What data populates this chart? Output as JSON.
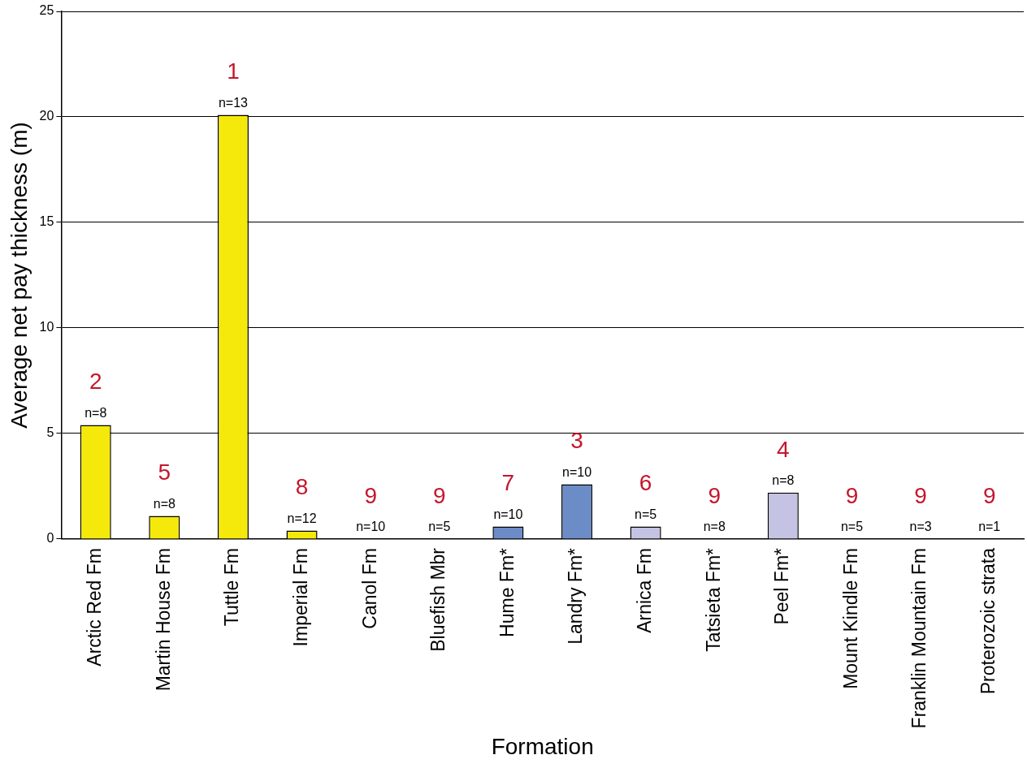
{
  "chart_data": {
    "type": "bar",
    "xlabel": "Formation",
    "ylabel": "Average net pay thickness (m)",
    "categories": [
      "Arctic Red Fm",
      "Martin House Fm",
      "Tuttle Fm",
      "Imperial Fm",
      "Canol Fm",
      "Bluefish Mbr",
      "Hume Fm*",
      "Landry Fm*",
      "Arnica Fm",
      "Tatsieta Fm*",
      "Peel Fm*",
      "Mount Kindle Fm",
      "Franklin Mountain Fm",
      "Proterozoic strata"
    ],
    "values": [
      5.4,
      1.1,
      20.1,
      0.4,
      0,
      0,
      0.6,
      2.6,
      0.6,
      0,
      2.2,
      0,
      0,
      0
    ],
    "colors": [
      "#f5e90c",
      "#f5e90c",
      "#f5e90c",
      "#f5e90c",
      "#f5e90c",
      "#f5e90c",
      "#6b8cc7",
      "#6b8cc7",
      "#c5c3e3",
      "#c5c3e3",
      "#c5c3e3",
      "#c5c3e3",
      "#c5c3e3",
      "#c5c3e3"
    ],
    "ylim": [
      0,
      25
    ],
    "yticks": [
      0,
      5,
      10,
      15,
      20,
      25
    ],
    "grid": "y",
    "legend": false,
    "annotations": [
      {
        "text": "2",
        "x": "Arctic Red Fm",
        "y": 5.4
      },
      {
        "text": "n=8",
        "x": "Arctic Red Fm",
        "y": 5.4
      },
      {
        "text": "5",
        "x": "Martin House Fm",
        "y": 1.1
      },
      {
        "text": "n=8",
        "x": "Martin House Fm",
        "y": 1.1
      },
      {
        "text": "1",
        "x": "Tuttle Fm",
        "y": 20.1
      },
      {
        "text": "n=13",
        "x": "Tuttle Fm",
        "y": 20.1
      },
      {
        "text": "8",
        "x": "Imperial Fm",
        "y": 0.4
      },
      {
        "text": "n=12",
        "x": "Imperial Fm",
        "y": 0.4
      },
      {
        "text": "9",
        "x": "Canol Fm",
        "y": 0
      },
      {
        "text": "n=10",
        "x": "Canol Fm",
        "y": 0
      },
      {
        "text": "9",
        "x": "Bluefish Mbr",
        "y": 0
      },
      {
        "text": "n=5",
        "x": "Bluefish Mbr",
        "y": 0
      },
      {
        "text": "7",
        "x": "Hume Fm*",
        "y": 0.6
      },
      {
        "text": "n=10",
        "x": "Hume Fm*",
        "y": 0.6
      },
      {
        "text": "3",
        "x": "Landry Fm*",
        "y": 2.6
      },
      {
        "text": "n=10",
        "x": "Landry Fm*",
        "y": 2.6
      },
      {
        "text": "6",
        "x": "Arnica Fm",
        "y": 0.6
      },
      {
        "text": "n=5",
        "x": "Arnica Fm",
        "y": 0.6
      },
      {
        "text": "9",
        "x": "Tatsieta Fm*",
        "y": 0
      },
      {
        "text": "n=8",
        "x": "Tatsieta Fm*",
        "y": 0
      },
      {
        "text": "4",
        "x": "Peel Fm*",
        "y": 2.2
      },
      {
        "text": "n=8",
        "x": "Peel Fm*",
        "y": 2.2
      },
      {
        "text": "9",
        "x": "Mount Kindle Fm",
        "y": 0
      },
      {
        "text": "n=5",
        "x": "Mount Kindle Fm",
        "y": 0
      },
      {
        "text": "9",
        "x": "Franklin Mountain Fm",
        "y": 0
      },
      {
        "text": "n=3",
        "x": "Franklin Mountain Fm",
        "y": 0
      },
      {
        "text": "9",
        "x": "Proterozoic strata",
        "y": 0
      },
      {
        "text": "n=1",
        "x": "Proterozoic strata",
        "y": 0
      }
    ]
  }
}
